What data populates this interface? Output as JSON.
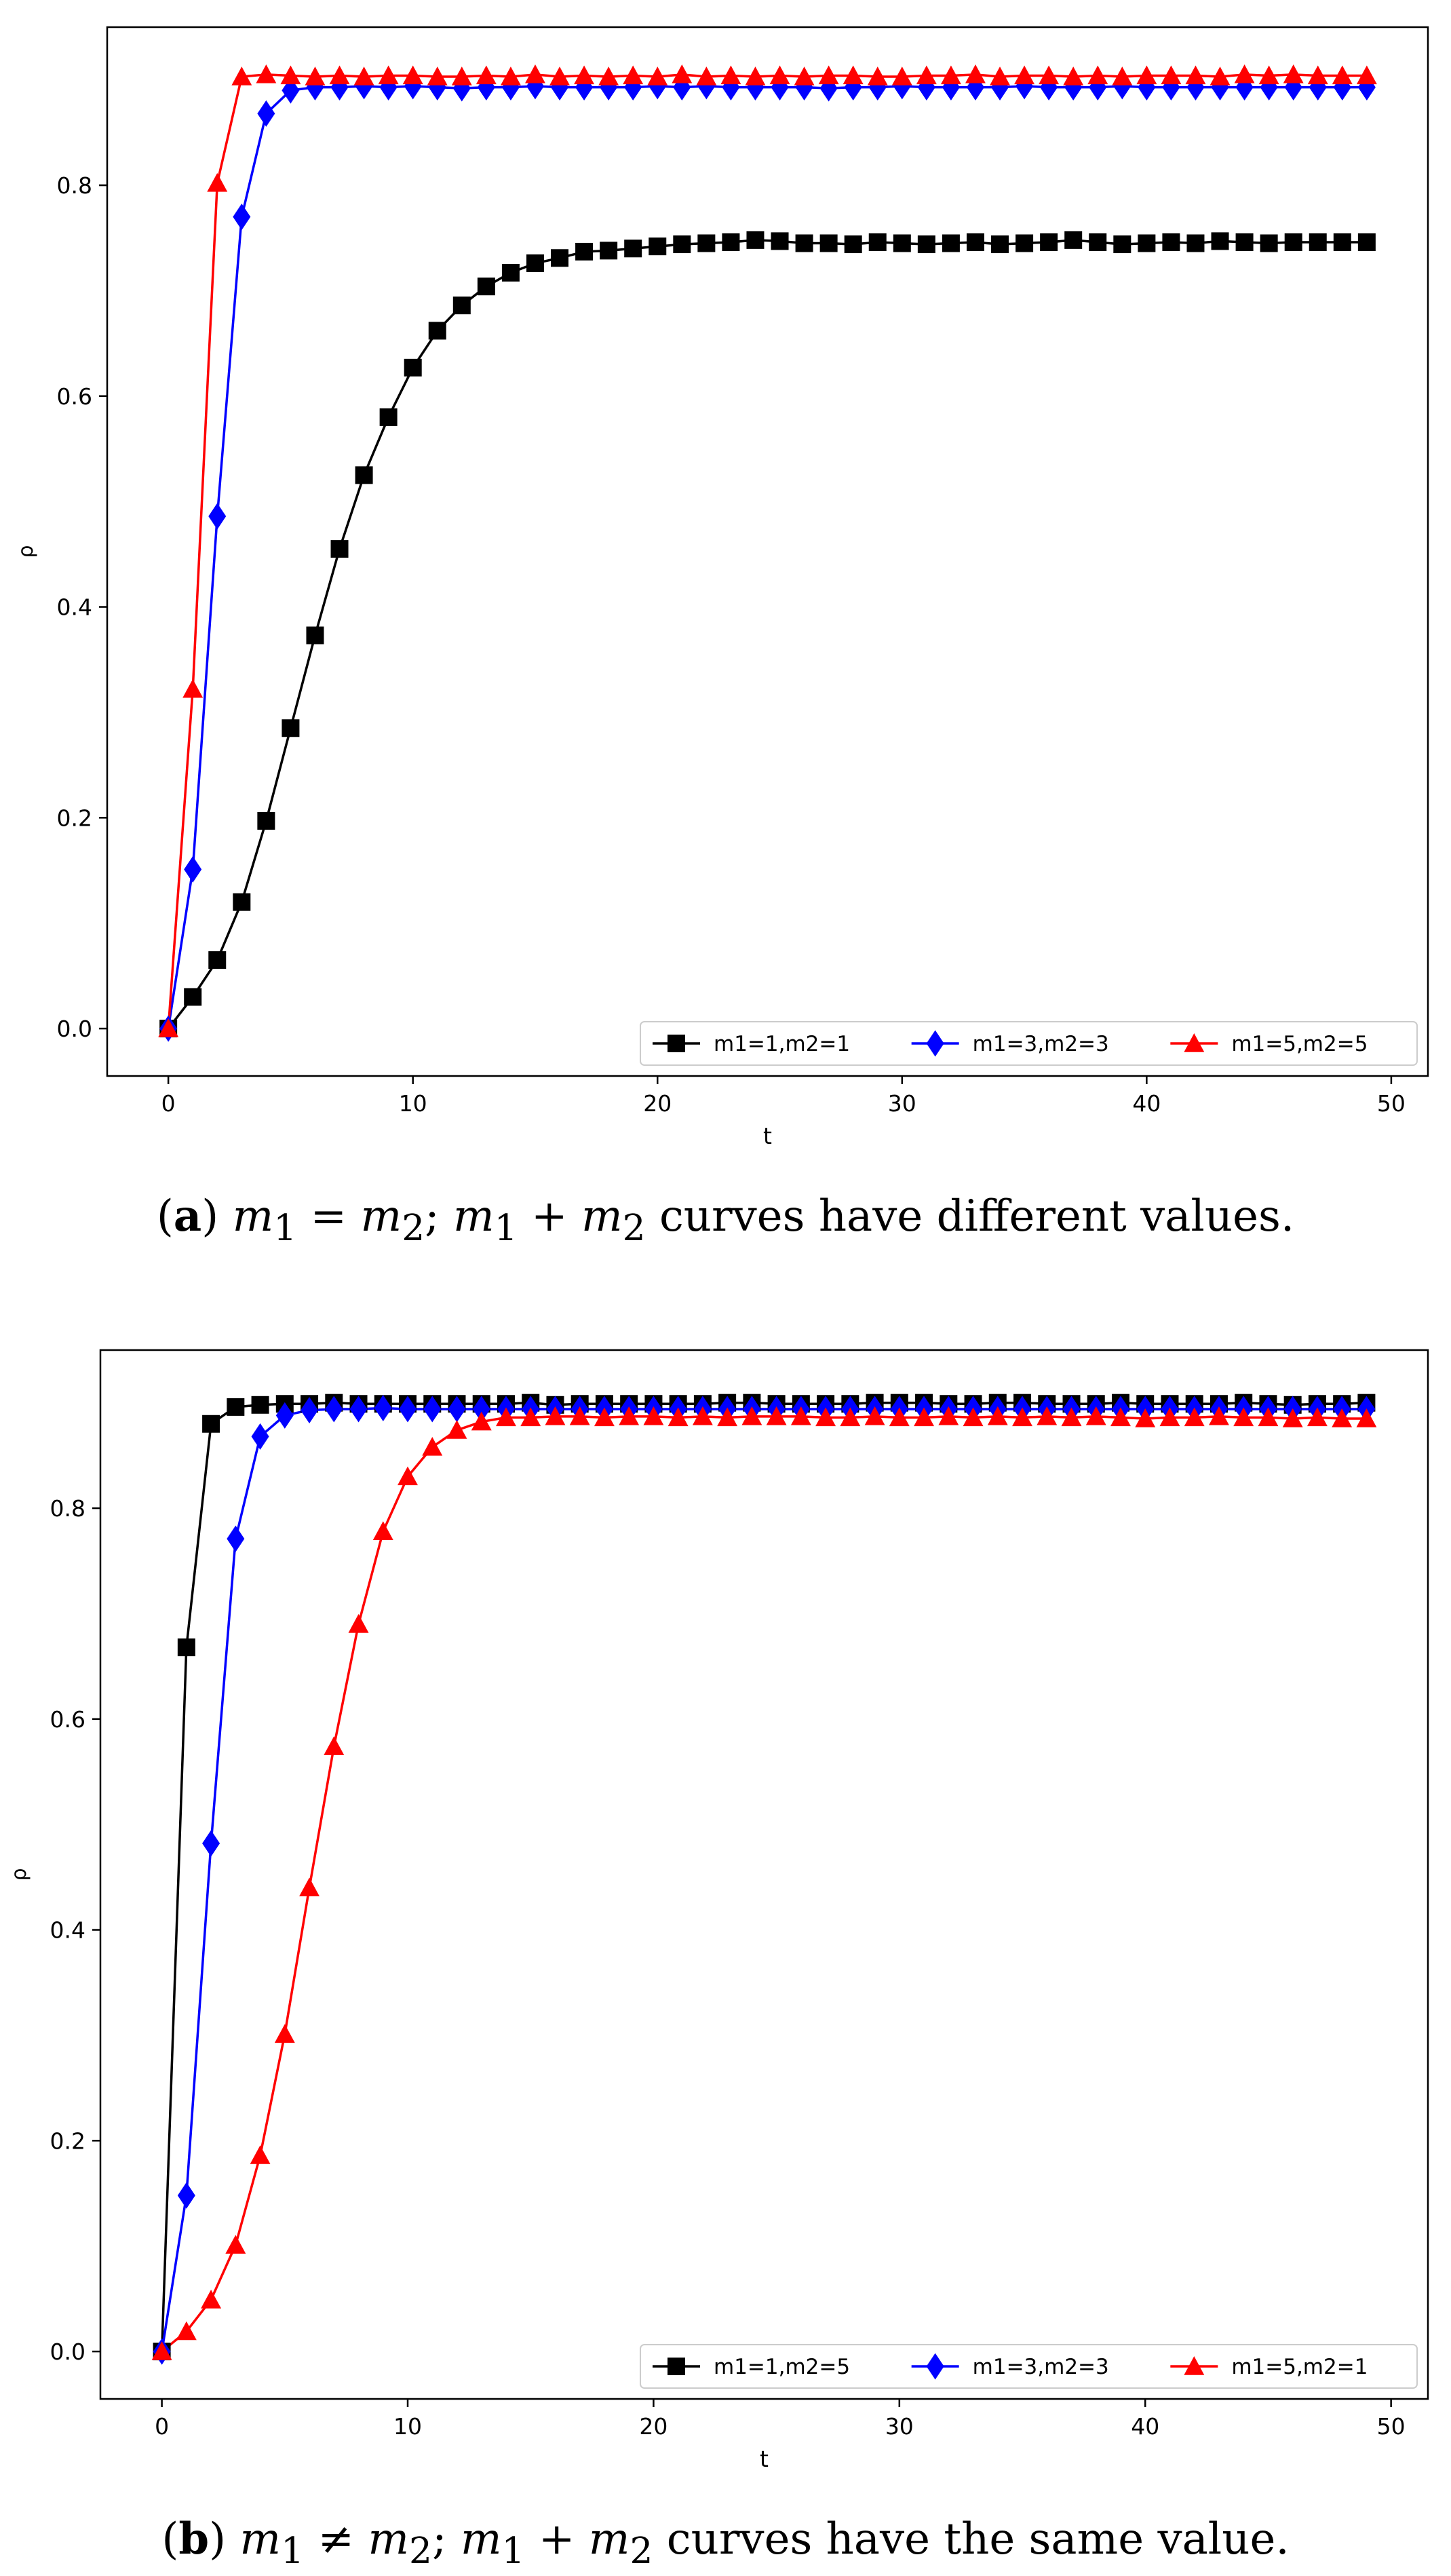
{
  "chart_data": [
    {
      "type": "line",
      "panel": "a",
      "xlabel": "t",
      "ylabel": "ρ",
      "xlim": [
        -2.5,
        51.5
      ],
      "ylim": [
        -0.045,
        0.95
      ],
      "xticks": [
        0,
        10,
        20,
        30,
        40,
        50
      ],
      "yticks": [
        0.0,
        0.2,
        0.4,
        0.6,
        0.8
      ],
      "ytick_labels": [
        "0.0",
        "0.2",
        "0.4",
        "0.6",
        "0.8"
      ],
      "legend_position": "lower-right",
      "x": [
        0,
        1,
        2,
        3,
        4,
        5,
        6,
        7,
        8,
        9,
        10,
        11,
        12,
        13,
        14,
        15,
        16,
        17,
        18,
        19,
        20,
        21,
        22,
        23,
        24,
        25,
        26,
        27,
        28,
        29,
        30,
        31,
        32,
        33,
        34,
        35,
        36,
        37,
        38,
        39,
        40,
        41,
        42,
        43,
        44,
        45,
        46,
        47,
        48,
        49
      ],
      "series": [
        {
          "name": "m1=1,m2=1",
          "color": "#000000",
          "marker": "square",
          "values": [
            0.0,
            0.03,
            0.065,
            0.12,
            0.197,
            0.285,
            0.373,
            0.455,
            0.525,
            0.58,
            0.627,
            0.662,
            0.686,
            0.704,
            0.717,
            0.726,
            0.731,
            0.737,
            0.738,
            0.74,
            0.742,
            0.744,
            0.745,
            0.746,
            0.748,
            0.747,
            0.745,
            0.745,
            0.744,
            0.746,
            0.745,
            0.744,
            0.745,
            0.746,
            0.744,
            0.745,
            0.746,
            0.748,
            0.746,
            0.744,
            0.745,
            0.746,
            0.745,
            0.747,
            0.746,
            0.745,
            0.746,
            0.746,
            0.746,
            0.746
          ]
        },
        {
          "name": "m1=3,m2=3",
          "color": "#0000ff",
          "marker": "diamond",
          "values": [
            0.0,
            0.151,
            0.486,
            0.77,
            0.868,
            0.89,
            0.893,
            0.893,
            0.894,
            0.893,
            0.894,
            0.893,
            0.892,
            0.893,
            0.893,
            0.894,
            0.893,
            0.893,
            0.893,
            0.893,
            0.894,
            0.893,
            0.894,
            0.893,
            0.893,
            0.893,
            0.893,
            0.892,
            0.893,
            0.893,
            0.894,
            0.893,
            0.893,
            0.893,
            0.893,
            0.894,
            0.893,
            0.893,
            0.893,
            0.894,
            0.893,
            0.893,
            0.893,
            0.893,
            0.893,
            0.893,
            0.893,
            0.893,
            0.893,
            0.893
          ]
        },
        {
          "name": "m1=5,m2=5",
          "color": "#ff0000",
          "marker": "triangle",
          "values": [
            0.0,
            0.322,
            0.802,
            0.903,
            0.905,
            0.904,
            0.903,
            0.904,
            0.903,
            0.904,
            0.904,
            0.903,
            0.903,
            0.904,
            0.903,
            0.905,
            0.903,
            0.904,
            0.903,
            0.904,
            0.903,
            0.905,
            0.903,
            0.904,
            0.903,
            0.904,
            0.903,
            0.904,
            0.904,
            0.903,
            0.903,
            0.904,
            0.904,
            0.905,
            0.903,
            0.904,
            0.904,
            0.903,
            0.904,
            0.903,
            0.904,
            0.904,
            0.904,
            0.903,
            0.905,
            0.904,
            0.905,
            0.904,
            0.904,
            0.904
          ]
        }
      ]
    },
    {
      "type": "line",
      "panel": "b",
      "xlabel": "t",
      "ylabel": "ρ",
      "xlim": [
        -2.5,
        51.5
      ],
      "ylim": [
        -0.045,
        0.95
      ],
      "xticks": [
        0,
        10,
        20,
        30,
        40,
        50
      ],
      "yticks": [
        0.0,
        0.2,
        0.4,
        0.6,
        0.8
      ],
      "ytick_labels": [
        "0.0",
        "0.2",
        "0.4",
        "0.6",
        "0.8"
      ],
      "legend_position": "lower-right",
      "x": [
        0,
        1,
        2,
        3,
        4,
        5,
        6,
        7,
        8,
        9,
        10,
        11,
        12,
        13,
        14,
        15,
        16,
        17,
        18,
        19,
        20,
        21,
        22,
        23,
        24,
        25,
        26,
        27,
        28,
        29,
        30,
        31,
        32,
        33,
        34,
        35,
        36,
        37,
        38,
        39,
        40,
        41,
        42,
        43,
        44,
        45,
        46,
        47,
        48,
        49
      ],
      "series": [
        {
          "name": "m1=1,m2=5",
          "color": "#000000",
          "marker": "square",
          "values": [
            0.0,
            0.668,
            0.88,
            0.896,
            0.898,
            0.899,
            0.899,
            0.9,
            0.899,
            0.899,
            0.899,
            0.899,
            0.899,
            0.899,
            0.899,
            0.9,
            0.898,
            0.899,
            0.899,
            0.899,
            0.899,
            0.899,
            0.899,
            0.9,
            0.9,
            0.899,
            0.899,
            0.899,
            0.899,
            0.9,
            0.9,
            0.9,
            0.899,
            0.899,
            0.9,
            0.9,
            0.899,
            0.899,
            0.899,
            0.9,
            0.899,
            0.899,
            0.899,
            0.899,
            0.9,
            0.899,
            0.898,
            0.899,
            0.899,
            0.9
          ]
        },
        {
          "name": "m1=3,m2=3",
          "color": "#0000ff",
          "marker": "diamond",
          "values": [
            0.0,
            0.148,
            0.482,
            0.771,
            0.868,
            0.888,
            0.893,
            0.894,
            0.894,
            0.895,
            0.894,
            0.894,
            0.894,
            0.894,
            0.894,
            0.894,
            0.894,
            0.894,
            0.894,
            0.894,
            0.894,
            0.894,
            0.894,
            0.894,
            0.894,
            0.894,
            0.894,
            0.894,
            0.894,
            0.894,
            0.894,
            0.894,
            0.894,
            0.894,
            0.894,
            0.894,
            0.894,
            0.894,
            0.894,
            0.894,
            0.894,
            0.894,
            0.894,
            0.894,
            0.894,
            0.894,
            0.894,
            0.894,
            0.894,
            0.894
          ]
        },
        {
          "name": "m1=5,m2=1",
          "color": "#ff0000",
          "marker": "triangle",
          "values": [
            0.0,
            0.019,
            0.049,
            0.101,
            0.186,
            0.301,
            0.44,
            0.574,
            0.69,
            0.778,
            0.83,
            0.858,
            0.874,
            0.882,
            0.886,
            0.886,
            0.887,
            0.887,
            0.886,
            0.887,
            0.887,
            0.886,
            0.887,
            0.886,
            0.887,
            0.887,
            0.887,
            0.886,
            0.886,
            0.887,
            0.886,
            0.886,
            0.887,
            0.886,
            0.887,
            0.886,
            0.887,
            0.886,
            0.887,
            0.886,
            0.885,
            0.886,
            0.886,
            0.887,
            0.886,
            0.886,
            0.885,
            0.886,
            0.885,
            0.885
          ]
        }
      ]
    }
  ],
  "captions": [
    {
      "label": "a",
      "m1": "m",
      "sub1": "1",
      "op1": " = ",
      "m2": "m",
      "sub2": "2",
      "mid": "; ",
      "m3": "m",
      "sub3": "1",
      "op2": " + ",
      "m4": "m",
      "sub4": "2",
      "tail": " curves have different values."
    },
    {
      "label": "b",
      "m1": "m",
      "sub1": "1",
      "op1": " ≠ ",
      "m2": "m",
      "sub2": "2",
      "mid": "; ",
      "m3": "m",
      "sub3": "1",
      "op2": " + ",
      "m4": "m",
      "sub4": "2",
      "tail": " curves have the same value."
    }
  ]
}
